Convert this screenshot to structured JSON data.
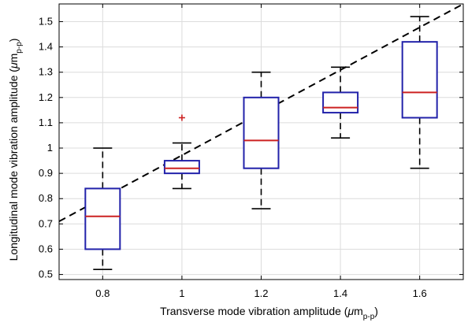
{
  "chart_data": {
    "type": "boxplot",
    "title": "",
    "xlabel": {
      "main": "Transverse mode vibration amplitude (",
      "mu": "μ",
      "unit": "m",
      "sub": "p-p",
      "close": ")"
    },
    "ylabel": {
      "main": "Longitudinal mode vibration amplitude (",
      "mu": "μ",
      "unit": "m",
      "sub": "p-p",
      "close": ")"
    },
    "categories": [
      "0.8",
      "1",
      "1.2",
      "1.4",
      "1.6"
    ],
    "x_positions": [
      0.8,
      1.0,
      1.2,
      1.4,
      1.6
    ],
    "xlim": [
      0.69,
      1.71
    ],
    "ylim": [
      0.48,
      1.57
    ],
    "y_ticks": [
      0.5,
      0.6,
      0.7,
      0.8,
      0.9,
      1.0,
      1.1,
      1.2,
      1.3,
      1.4,
      1.5
    ],
    "y_tick_labels": [
      "0.5",
      "0.6",
      "0.7",
      "0.8",
      "0.9",
      "1",
      "1.1",
      "1.2",
      "1.3",
      "1.4",
      "1.5"
    ],
    "grid": true,
    "boxes": [
      {
        "x": 0.8,
        "whisker_low": 0.52,
        "q1": 0.6,
        "median": 0.73,
        "q3": 0.84,
        "whisker_high": 1.0,
        "outliers": []
      },
      {
        "x": 1.0,
        "whisker_low": 0.84,
        "q1": 0.9,
        "median": 0.92,
        "q3": 0.95,
        "whisker_high": 1.02,
        "outliers": [
          1.12
        ]
      },
      {
        "x": 1.2,
        "whisker_low": 0.76,
        "q1": 0.92,
        "median": 1.03,
        "q3": 1.2,
        "whisker_high": 1.3,
        "outliers": []
      },
      {
        "x": 1.4,
        "whisker_low": 1.04,
        "q1": 1.14,
        "median": 1.16,
        "q3": 1.22,
        "whisker_high": 1.32,
        "outliers": []
      },
      {
        "x": 1.6,
        "whisker_low": 0.92,
        "q1": 1.12,
        "median": 1.22,
        "q3": 1.42,
        "whisker_high": 1.52,
        "outliers": []
      }
    ],
    "reference_line": {
      "style": "dashed",
      "x": [
        0.69,
        1.71
      ],
      "y": [
        0.71,
        1.57
      ]
    },
    "colors": {
      "box": "#2222aa",
      "median": "#cc2222",
      "outlier": "#cc2222",
      "whisker": "#000000",
      "grid": "#dcdcdc",
      "reference": "#000000"
    }
  }
}
